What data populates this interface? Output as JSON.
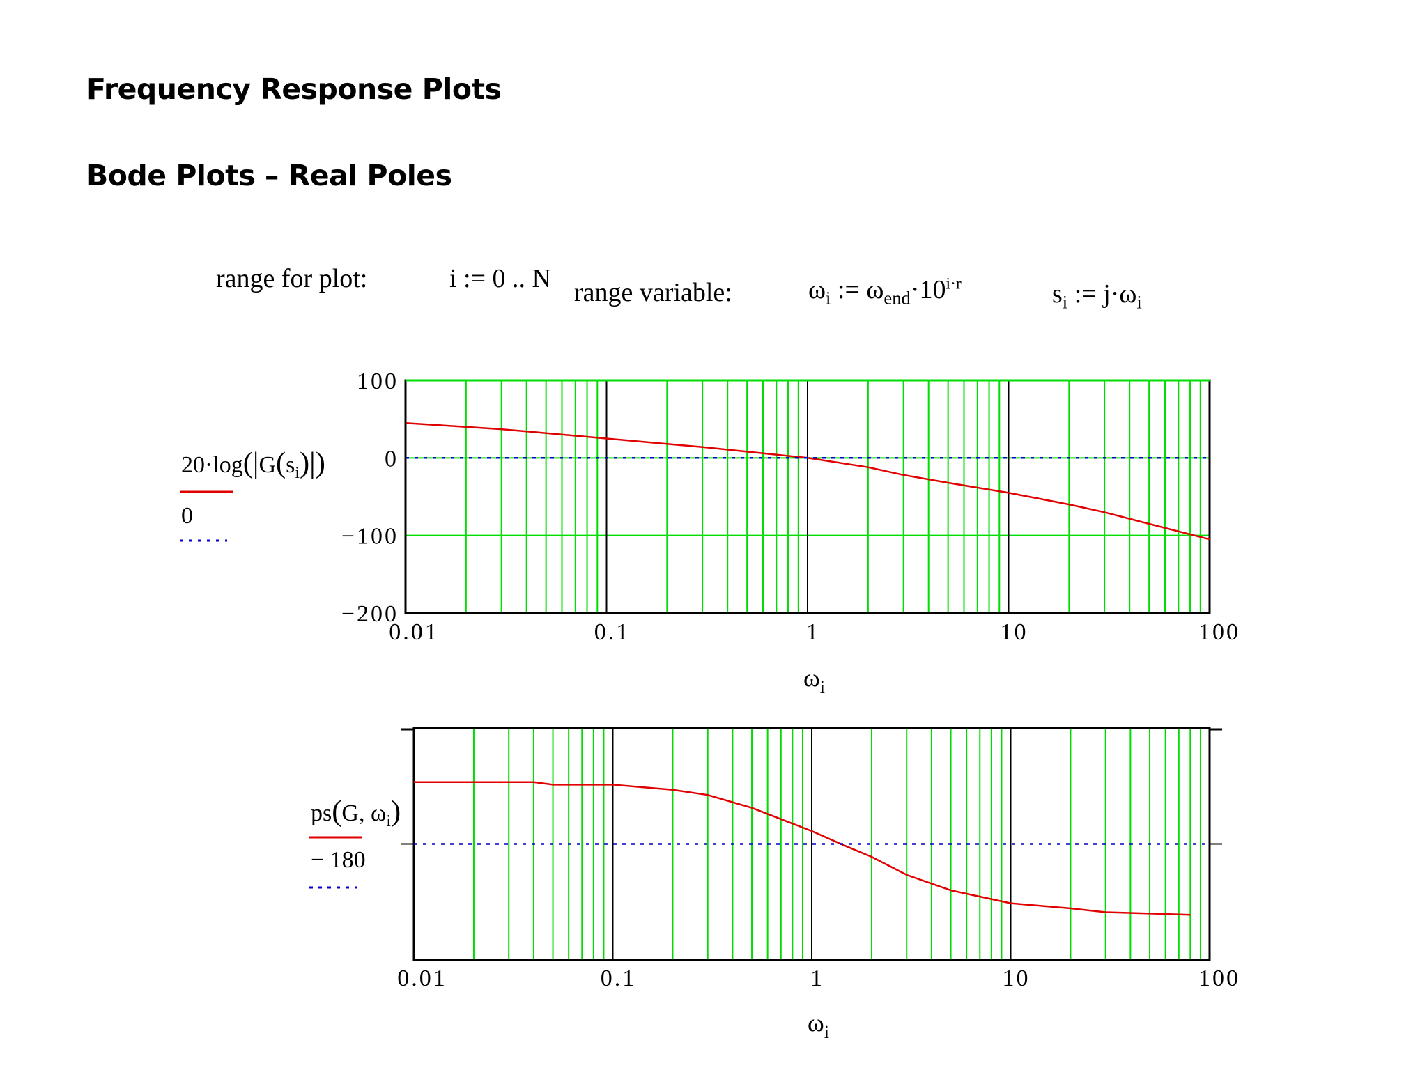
{
  "page": {
    "title": "Frequency Response Plots",
    "subtitle": "Bode Plots – Real Poles"
  },
  "definitions": {
    "range_label": "range for plot:",
    "range_expr": "i := 0 .. N",
    "range_var_label": "range variable:",
    "omega_def": {
      "lhs": "ω",
      "lhs_sub": "i",
      "op": " := ",
      "rhs": "ω",
      "rhs_sub": "end",
      "rest": "·10",
      "exp": "i·r"
    },
    "s_def": {
      "lhs": "s",
      "lhs_sub": "i",
      "op": " := ",
      "rhs": "j·ω",
      "rhs_sub": "i"
    }
  },
  "colors": {
    "trace": "#e00000",
    "ref": "#0000cc",
    "grid_minor": "#00dd00",
    "grid_major": "#000000",
    "frame": "#000000"
  },
  "chart_data": [
    {
      "type": "line",
      "xscale": "log",
      "xlim": [
        0.01,
        100
      ],
      "ylim": [
        -200,
        100
      ],
      "xticks": [
        0.01,
        0.1,
        1,
        10,
        100
      ],
      "xtick_labels": [
        "0.01",
        "0.1",
        "1",
        "10",
        "100"
      ],
      "yticks": [
        100,
        0,
        -100,
        -200
      ],
      "ytick_labels": [
        "100",
        "0",
        "−100",
        "−200"
      ],
      "xlabel": {
        "base": "ω",
        "sub": "i"
      },
      "legend": [
        {
          "pre": "20·log",
          "mid": "G",
          "arg": "s",
          "arg_sub": "i",
          "style": "solid"
        },
        {
          "label": "0",
          "style": "dotted"
        }
      ],
      "series": [
        {
          "style": "solid",
          "x": [
            0.01,
            0.02,
            0.03,
            0.05,
            0.1,
            0.2,
            0.3,
            0.5,
            1,
            2,
            3,
            5,
            10,
            20,
            30,
            50,
            100
          ],
          "y": [
            45,
            40,
            37,
            32,
            25,
            18,
            14,
            8,
            0,
            -12,
            -22,
            -32,
            -45,
            -60,
            -70,
            -85,
            -105
          ]
        },
        {
          "style": "dotted",
          "x": [
            0.01,
            100
          ],
          "y": [
            0,
            0
          ]
        }
      ]
    },
    {
      "type": "line",
      "xscale": "log",
      "xlim": [
        0.01,
        100
      ],
      "ylim": [
        -270,
        -90
      ],
      "xticks": [
        0.01,
        0.1,
        1,
        10,
        100
      ],
      "xtick_labels": [
        "0.01",
        "0.1",
        "1",
        "10",
        "100"
      ],
      "xlabel": {
        "base": "ω",
        "sub": "i"
      },
      "legend": [
        {
          "pre": "ps",
          "arg": "G, ω",
          "arg_sub": "i",
          "style": "solid"
        },
        {
          "label": "− 180",
          "style": "dotted"
        }
      ],
      "series": [
        {
          "style": "solid",
          "x": [
            0.01,
            0.02,
            0.04,
            0.05,
            0.08,
            0.1,
            0.2,
            0.3,
            0.5,
            1,
            1.5,
            2,
            3,
            5,
            10,
            20,
            30,
            50,
            80
          ],
          "y": [
            -132,
            -132,
            -132,
            -134,
            -134,
            -134,
            -138,
            -142,
            -152,
            -170,
            -182,
            -190,
            -204,
            -216,
            -226,
            -230,
            -233,
            -234,
            -235
          ]
        },
        {
          "style": "dotted",
          "x": [
            0.01,
            100
          ],
          "y": [
            -180,
            -180
          ]
        }
      ]
    }
  ]
}
